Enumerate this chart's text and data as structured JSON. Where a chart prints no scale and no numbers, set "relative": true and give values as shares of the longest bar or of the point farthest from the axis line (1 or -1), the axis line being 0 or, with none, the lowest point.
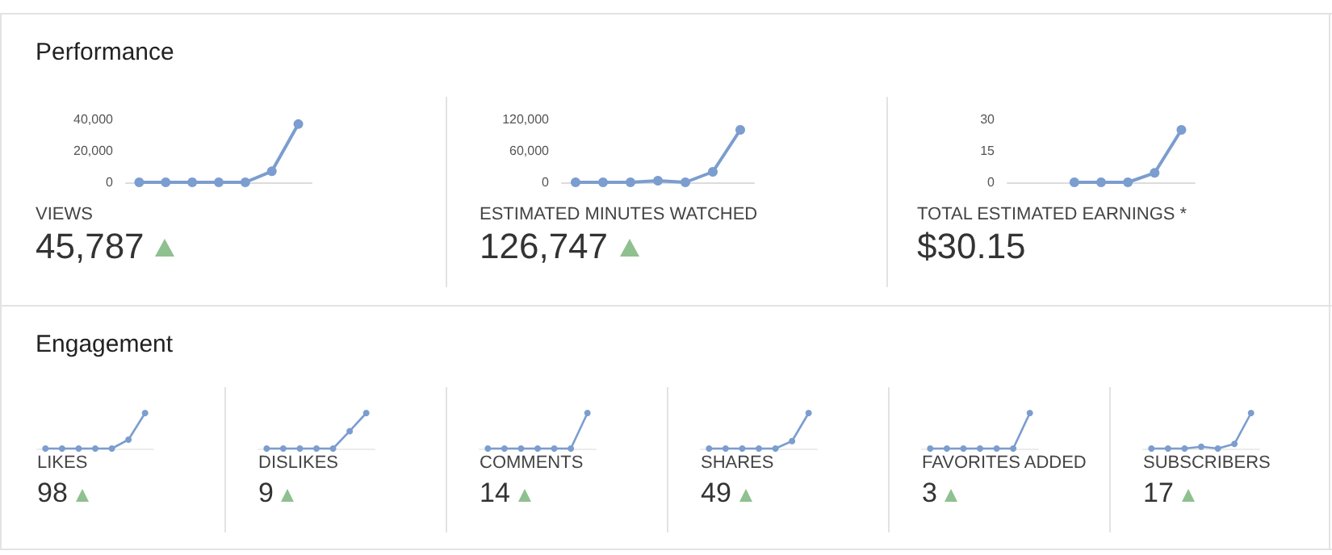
{
  "chart_data": [
    {
      "type": "other",
      "title": "Performance"
    },
    {
      "type": "line",
      "title": "VIEWS",
      "subtitle": "45,787",
      "categories": [
        null,
        null,
        null,
        null,
        null,
        null,
        null
      ],
      "values": [
        0,
        0,
        0,
        0,
        0,
        7000,
        37000
      ],
      "color": "#7b9dcf",
      "marker": "circle",
      "ylim": [
        0,
        40000
      ],
      "yticks": [
        0,
        {
          "value": 20000,
          "label": "20,000"
        },
        {
          "value": 40000,
          "label": "40,000"
        }
      ],
      "tick_labels": "y",
      "grid": false
    },
    {
      "type": "line",
      "title": "ESTIMATED MINUTES WATCHED",
      "subtitle": "126,747",
      "categories": [
        null,
        null,
        null,
        null,
        null,
        null,
        null
      ],
      "values": [
        0,
        0,
        0,
        3000,
        0,
        20000,
        100000
      ],
      "color": "#7b9dcf",
      "marker": "circle",
      "ylim": [
        0,
        120000
      ],
      "yticks": [
        0,
        {
          "value": 60000,
          "label": "60,000"
        },
        {
          "value": 120000,
          "label": "120,000"
        }
      ],
      "tick_labels": "y",
      "grid": false
    },
    {
      "type": "line",
      "title": "TOTAL ESTIMATED EARNINGS *",
      "subtitle": "$30.15",
      "categories": [
        null,
        null,
        null,
        null,
        null,
        null,
        null
      ],
      "values": [
        null,
        null,
        0,
        0,
        0,
        4.5,
        25
      ],
      "color": "#7b9dcf",
      "marker": "circle",
      "ylim": [
        0,
        30
      ],
      "yticks": [
        0,
        15,
        30
      ],
      "tick_labels": "y",
      "grid": false
    },
    {
      "type": "other",
      "title": "Engagement"
    },
    {
      "type": "line",
      "title": "LIKES",
      "subtitle": "98",
      "relative": true,
      "categories": [
        null,
        null,
        null,
        null,
        null,
        null,
        null
      ],
      "values": [
        0,
        0,
        0,
        0,
        0,
        0.25,
        1
      ],
      "color": "#7b9dcf",
      "marker": "circle",
      "tick_labels": false
    },
    {
      "type": "line",
      "title": "DISLIKES",
      "subtitle": "9",
      "relative": true,
      "categories": [
        null,
        null,
        null,
        null,
        null,
        null,
        null
      ],
      "values": [
        0,
        0,
        0,
        0,
        0,
        0.49,
        1
      ],
      "color": "#7b9dcf",
      "marker": "circle",
      "tick_labels": false
    },
    {
      "type": "line",
      "title": "COMMENTS",
      "subtitle": "14",
      "relative": true,
      "categories": [
        null,
        null,
        null,
        null,
        null,
        null,
        null
      ],
      "values": [
        0,
        0,
        0,
        0,
        0,
        0,
        1
      ],
      "color": "#7b9dcf",
      "marker": "circle",
      "tick_labels": false
    },
    {
      "type": "line",
      "title": "SHARES",
      "subtitle": "49",
      "relative": true,
      "categories": [
        null,
        null,
        null,
        null,
        null,
        null,
        null
      ],
      "values": [
        0,
        0,
        0,
        0,
        0,
        0.21,
        1
      ],
      "color": "#7b9dcf",
      "marker": "circle",
      "tick_labels": false
    },
    {
      "type": "line",
      "title": "FAVORITES ADDED",
      "subtitle": "3",
      "relative": true,
      "categories": [
        null,
        null,
        null,
        null,
        null,
        null,
        null
      ],
      "values": [
        0,
        0,
        0,
        0,
        0,
        0,
        1
      ],
      "color": "#7b9dcf",
      "marker": "circle",
      "tick_labels": false
    },
    {
      "type": "line",
      "title": "SUBSCRIBERS",
      "subtitle": "17",
      "relative": true,
      "categories": [
        null,
        null,
        null,
        null,
        null,
        null,
        null
      ],
      "values": [
        0,
        0,
        0,
        0.05,
        0,
        0.13,
        1
      ],
      "color": "#7b9dcf",
      "marker": "circle",
      "tick_labels": false
    }
  ]
}
